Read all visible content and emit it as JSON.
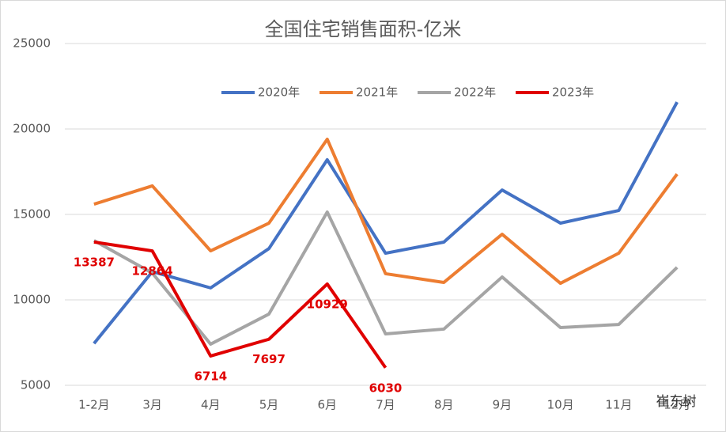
{
  "chart_data": {
    "type": "line",
    "title": "全国住宅销售面积-亿米",
    "categories": [
      "1-2月",
      "3月",
      "4月",
      "5月",
      "6月",
      "7月",
      "8月",
      "9月",
      "10月",
      "11月",
      "12月"
    ],
    "series": [
      {
        "name": "2020年",
        "color": "#4472c4",
        "values": [
          7450,
          11650,
          10700,
          13000,
          18200,
          12730,
          13380,
          16430,
          14490,
          15230,
          21570
        ]
      },
      {
        "name": "2021年",
        "color": "#ed7d31",
        "values": [
          15600,
          16670,
          12870,
          14490,
          19400,
          11530,
          11020,
          13840,
          10970,
          12730,
          17360
        ]
      },
      {
        "name": "2022年",
        "color": "#a5a5a5",
        "values": [
          13470,
          11570,
          7410,
          9170,
          15140,
          8010,
          8290,
          11340,
          8380,
          8560,
          11900
        ]
      },
      {
        "name": "2023年",
        "color": "#e00000",
        "values": [
          13387,
          12864,
          6714,
          7697,
          10929,
          6030,
          null,
          null,
          null,
          null,
          null
        ],
        "data_labels": true
      }
    ],
    "ylim": [
      5000,
      25000
    ],
    "yticks": [
      5000,
      10000,
      15000,
      20000,
      25000
    ],
    "grid": true,
    "legend": "top",
    "watermark": "崔东树"
  }
}
